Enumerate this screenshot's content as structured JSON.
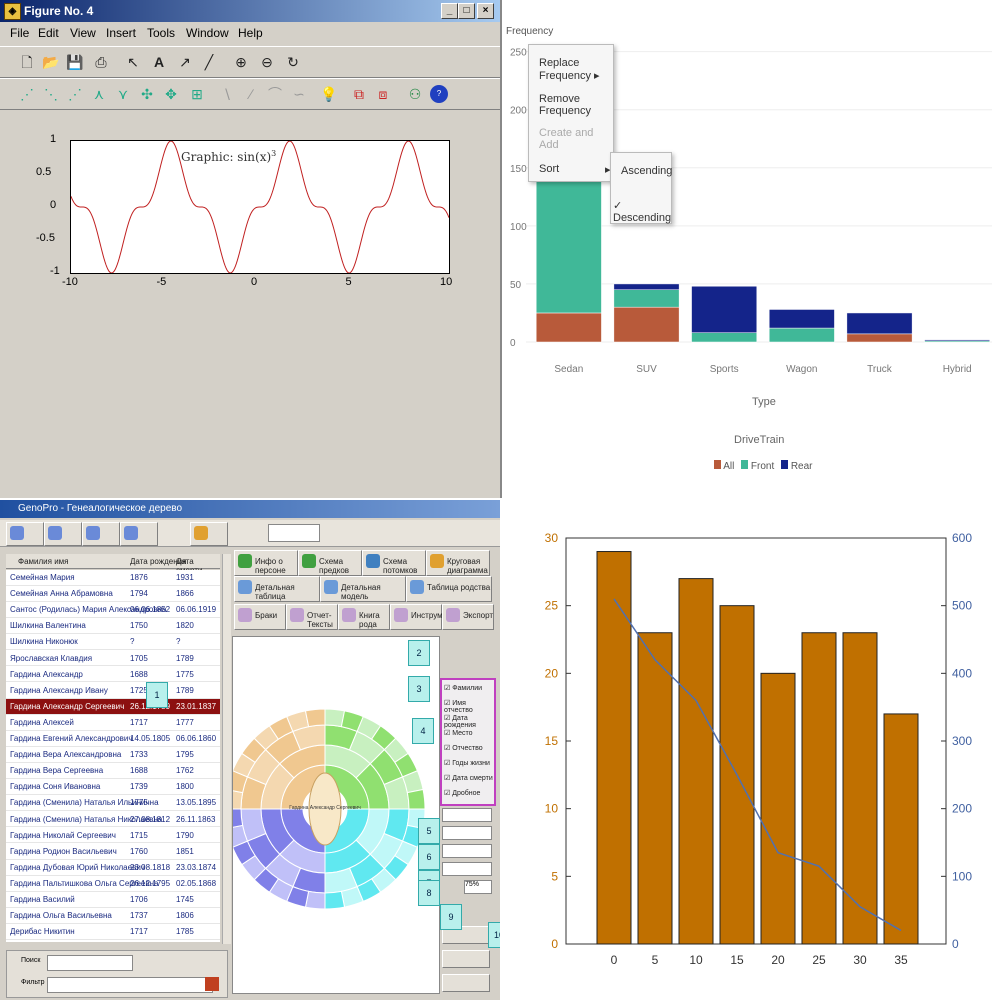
{
  "figure_window": {
    "title": "Figure No. 4",
    "title_icon": "matlab-figure-icon",
    "window_buttons": [
      "minimize-button",
      "maximize-button",
      "close-button"
    ],
    "menu": [
      "File",
      "Edit",
      "View",
      "Insert",
      "Tools",
      "Window",
      "Help"
    ],
    "toolbar1_icons": [
      "new-icon",
      "open-icon",
      "save-icon",
      "print-icon",
      "arrow-icon",
      "text-icon",
      "arrow-line-icon",
      "line-icon",
      "zoom-in-icon",
      "zoom-out-icon",
      "rotate-icon"
    ],
    "toolbar2_icons": [
      "datatip-icon",
      "datatip-icon",
      "datatip-icon",
      "datatip-icon",
      "datatip-icon",
      "datatip-icon",
      "datatip-icon",
      "datatip-icon",
      "curve-icon",
      "curve-icon",
      "curve-icon",
      "curve-icon",
      "bulb-icon",
      "camera-icon",
      "camera-icon",
      "person-icon",
      "help-icon"
    ],
    "plot_label": "Graphic: sin(x)",
    "plot_label_exponent": "3",
    "chart_data": {
      "type": "line",
      "x_ticks": [
        "-10",
        "-5",
        "0",
        "5",
        "10"
      ],
      "y_ticks": [
        "1",
        "0.5",
        "0",
        "-0.5",
        "-1"
      ],
      "xlim": [
        -10,
        10
      ],
      "ylim": [
        -1,
        1
      ],
      "series": [
        {
          "color": "#c02020"
        }
      ],
      "function": "sin(x)^3 shape over [-10,10]"
    }
  },
  "frequency_chart": {
    "ylabel": "Frequency",
    "xlabel": "Type",
    "legend_title": "DriveTrain",
    "legend": [
      "All",
      "Front",
      "Rear"
    ],
    "context_menu": [
      "Replace Frequency",
      "Remove Frequency",
      "Create and Add",
      "Sort"
    ],
    "submenu": [
      "Ascending",
      "Descending"
    ],
    "chart_data": {
      "type": "bar",
      "stacked": true,
      "categories": [
        "Sedan",
        "SUV",
        "Sports",
        "Wagon",
        "Truck",
        "Hybrid"
      ],
      "y_ticks": [
        "250",
        "200",
        "150",
        "100",
        "50",
        "0"
      ],
      "ylim": [
        0,
        260
      ],
      "series": [
        {
          "name": "All",
          "color": "#b85a3a",
          "values": [
            25,
            30,
            0,
            0,
            7,
            0
          ]
        },
        {
          "name": "Front",
          "color": "#40b898",
          "values": [
            120,
            15,
            8,
            12,
            0,
            1
          ]
        },
        {
          "name": "Rear",
          "color": "#14248a",
          "values": [
            0,
            5,
            40,
            16,
            18,
            1
          ]
        }
      ]
    }
  },
  "genealogy_app": {
    "title": "GenoPro - Генеалогическое дерево",
    "columns": [
      "Фамилия имя",
      "Дата рождения",
      "Дата смерти"
    ],
    "rows": [
      [
        "Семейная Мария",
        "1876",
        "1931"
      ],
      [
        "Семейная Анна Абрамовна",
        "1794",
        "1866"
      ],
      [
        "Сантос (Родилась) Мария Александровна",
        "06.06.1852",
        "06.06.1919"
      ],
      [
        "Шилкина Валентина",
        "1750",
        "1820"
      ],
      [
        "Шилкина Никонюк",
        "?",
        "?"
      ],
      [
        "Ярославская Клавдия",
        "1705",
        "1789"
      ],
      [
        "Гардина Александр",
        "1688",
        "1775"
      ],
      [
        "Гардина Александр Ивану",
        "1725",
        "1789"
      ],
      [
        "Гардина Александр Сергеевич",
        "26.12.1759",
        "23.01.1837"
      ],
      [
        "Гардина Алексей",
        "1717",
        "1777"
      ],
      [
        "Гардина Евгений Александрович",
        "14.05.1805",
        "06.06.1860"
      ],
      [
        "Гардина Вера Александровна",
        "1733",
        "1795"
      ],
      [
        "Гардина Вера Сергеевна",
        "1688",
        "1762"
      ],
      [
        "Гардина Соня Ивановна",
        "1739",
        "1800"
      ],
      [
        "Гардина (Сменила) Наталья Ильинична",
        "1775",
        "13.05.1895"
      ],
      [
        "Гардина (Сменила) Наталья Николаевна",
        "27.08.1812",
        "26.11.1863"
      ],
      [
        "Гардина Николай Сергеевич",
        "1715",
        "1790"
      ],
      [
        "Гардина Родион Васильевич",
        "1760",
        "1851"
      ],
      [
        "Гардина Дубовая Юрий Николаевич",
        "23.08.1818",
        "23.03.1874"
      ],
      [
        "Гардина Пальтишкова Ольга Сергеевна",
        "26.12.1795",
        "02.05.1868"
      ],
      [
        "Гардина Василий",
        "1706",
        "1745"
      ],
      [
        "Гардина Ольга Васильевна",
        "1737",
        "1806"
      ],
      [
        "Дерибас Никитин",
        "1717",
        "1785"
      ]
    ],
    "selected_row": 8,
    "tabs_row1": [
      "Инфо о персоне",
      "Схема предков",
      "Схема потомков",
      "Круговая диаграмма"
    ],
    "tabs_row2": [
      "Детальная таблица",
      "Детальная модель",
      "Таблица родства"
    ],
    "tabs_row3": [
      "Браки",
      "Отчет-Тексты",
      "Книга рода",
      "Инструменты",
      "Экспорт"
    ],
    "find_label": "Поиск",
    "filter_label": "Фильтр",
    "callouts": [
      "1",
      "2",
      "3",
      "4",
      "5",
      "6",
      "7",
      "8",
      "9",
      "10"
    ],
    "options": [
      "Фамилии",
      "Имя отчество",
      "Дата рождения",
      "Место",
      "Отчество",
      "Годы жизни",
      "Дата смерти",
      "Дробное"
    ],
    "zoom": "75%",
    "center_text": "Гардина Александр Сергеевич"
  },
  "bar_line_chart": {
    "chart_data": {
      "type": "bar",
      "categories": [
        "0",
        "5",
        "10",
        "15",
        "20",
        "25",
        "30",
        "35"
      ],
      "values": [
        29,
        23,
        27,
        25,
        20,
        23,
        23,
        17
      ],
      "bar_color": "#c07000",
      "ylim": [
        0,
        30
      ],
      "y_ticks": [
        "0",
        "5",
        "10",
        "15",
        "20",
        "25",
        "30"
      ],
      "secondary_axis": {
        "ylim": [
          0,
          600
        ],
        "ticks": [
          "0",
          "100",
          "200",
          "300",
          "400",
          "500",
          "600"
        ],
        "color": "#4060a0"
      },
      "line": {
        "color": "#5070b0",
        "x": [
          0,
          5,
          10,
          15,
          20,
          25,
          30,
          35
        ],
        "values": [
          510,
          420,
          360,
          250,
          135,
          115,
          55,
          20
        ]
      }
    }
  }
}
